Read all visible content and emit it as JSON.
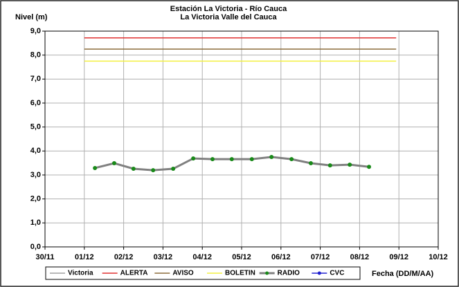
{
  "chart_data": {
    "type": "line",
    "title": "Estación La Victoria - Río Cauca",
    "subtitle": "La Victoria Valle del Cauca",
    "y_label": "Nivel (m)",
    "x_label": "Fecha (DD/M/AA)",
    "xlim": [
      0,
      10
    ],
    "xticks": [
      {
        "value": 0,
        "label": "30/11"
      },
      {
        "value": 1,
        "label": "01/12"
      },
      {
        "value": 2,
        "label": "02/12"
      },
      {
        "value": 3,
        "label": "03/12"
      },
      {
        "value": 4,
        "label": "04/12"
      },
      {
        "value": 5,
        "label": "05/12"
      },
      {
        "value": 6,
        "label": "06/12"
      },
      {
        "value": 7,
        "label": "07/12"
      },
      {
        "value": 8,
        "label": "08/12"
      },
      {
        "value": 9,
        "label": "09/12"
      },
      {
        "value": 10,
        "label": "10/12"
      }
    ],
    "ylim": [
      0,
      9
    ],
    "yticks": [
      {
        "value": 0,
        "label": "0,0"
      },
      {
        "value": 1,
        "label": "1,0"
      },
      {
        "value": 2,
        "label": "2,0"
      },
      {
        "value": 3,
        "label": "3,0"
      },
      {
        "value": 4,
        "label": "4,0"
      },
      {
        "value": 5,
        "label": "5,0"
      },
      {
        "value": 6,
        "label": "6,0"
      },
      {
        "value": 7,
        "label": "7,0"
      },
      {
        "value": 8,
        "label": "8,0"
      },
      {
        "value": 9,
        "label": "9,0"
      }
    ],
    "grid": true,
    "legend": "bottom",
    "series": [
      {
        "name": "Victoria",
        "color": "#a0a0a0",
        "x": [],
        "values": []
      },
      {
        "name": "ALERTA",
        "color": "#e03030",
        "x": [
          1.0,
          8.93
        ],
        "values": [
          8.72,
          8.72
        ]
      },
      {
        "name": "AVISO",
        "color": "#8b6b3a",
        "x": [
          1.0,
          8.93
        ],
        "values": [
          8.25,
          8.25
        ]
      },
      {
        "name": "BOLETIN",
        "color": "#f2f040",
        "x": [
          1.0,
          8.93
        ],
        "values": [
          7.75,
          7.75
        ]
      },
      {
        "name": "RADIO",
        "color": "#808080",
        "marker_color": "#1a8a1a",
        "x": [
          1.27,
          1.76,
          2.25,
          2.75,
          3.26,
          3.77,
          4.26,
          4.75,
          5.26,
          5.76,
          6.27,
          6.76,
          7.25,
          7.75,
          8.24
        ],
        "values": [
          3.29,
          3.49,
          3.26,
          3.2,
          3.26,
          3.69,
          3.66,
          3.66,
          3.66,
          3.75,
          3.66,
          3.49,
          3.4,
          3.43,
          3.34
        ]
      },
      {
        "name": "CVC",
        "color": "#2020d0",
        "x": [],
        "values": []
      }
    ]
  }
}
